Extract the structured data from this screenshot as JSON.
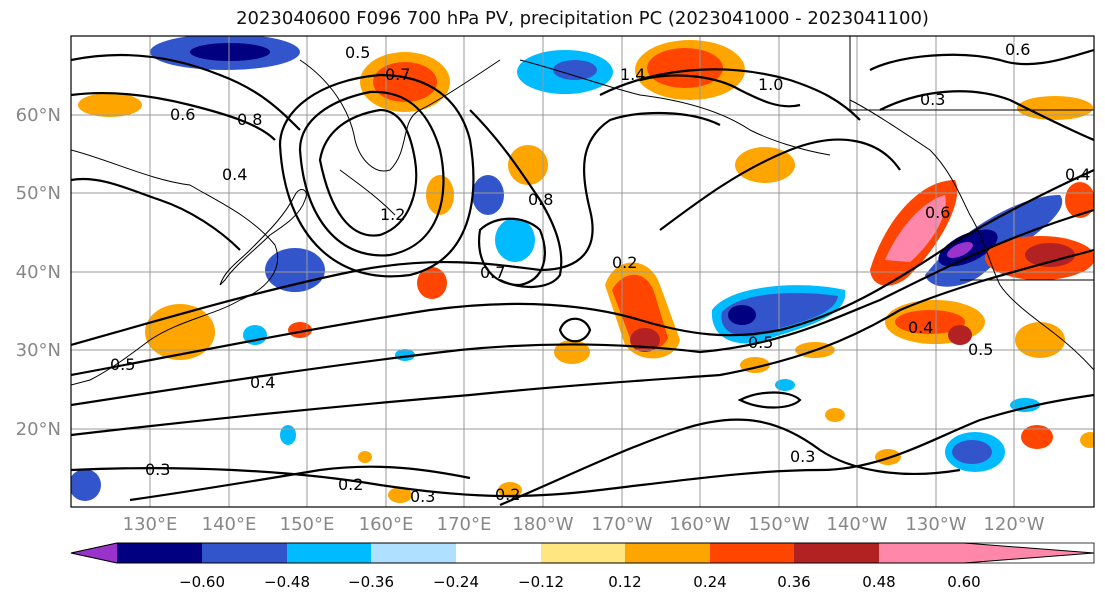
{
  "title": "2023040600 F096 700 hPa PV, precipitation PC (2023041000 - 2023041100)",
  "lat_labels": [
    "60°N",
    "50°N",
    "40°N",
    "30°N",
    "20°N"
  ],
  "lon_labels": [
    "130°E",
    "140°E",
    "150°E",
    "160°E",
    "170°E",
    "180°W",
    "170°W",
    "160°W",
    "150°W",
    "140°W",
    "130°W",
    "120°W"
  ],
  "colorbar": {
    "ticks": [
      "−0.60",
      "−0.48",
      "−0.36",
      "−0.24",
      "−0.12",
      "0.12",
      "0.24",
      "0.36",
      "0.48",
      "0.60"
    ],
    "colors": [
      "#9933cc",
      "#000080",
      "#3355cc",
      "#00bbff",
      "#b0e0ff",
      "#ffffff",
      "#ffe680",
      "#ffa500",
      "#ff4500",
      "#b22222",
      "#ff88aa"
    ]
  },
  "contour_labels": [
    "0.5",
    "0.7",
    "1.4",
    "1.0",
    "0.6",
    "0.3",
    "0.6",
    "0.8",
    "0.4",
    "1.2",
    "0.8",
    "0.7",
    "0.2",
    "0.5",
    "0.4",
    "0.5",
    "0.3",
    "0.2",
    "0.3",
    "0.3",
    "0.4",
    "0.5",
    "0.6",
    "0.2",
    "0.4"
  ]
}
